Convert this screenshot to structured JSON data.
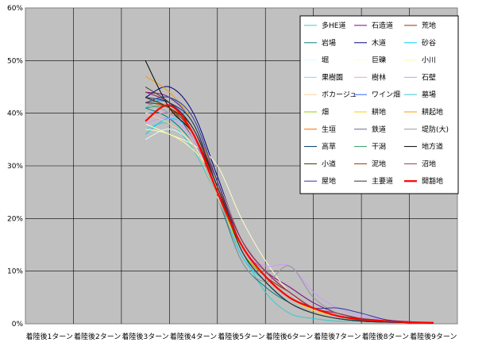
{
  "chart_data": {
    "type": "line",
    "title": "",
    "xlabel": "",
    "ylabel": "",
    "ylim": [
      0,
      60
    ],
    "y_ticks": [
      "0%",
      "10%",
      "20%",
      "30%",
      "40%",
      "50%",
      "60%"
    ],
    "categories": [
      "着陸後1ターン",
      "着陸後2ターン",
      "着陸後3ターン",
      "着陸後4ターン",
      "着陸後5ターン",
      "着陸後6ターン",
      "着陸後7ターン",
      "着陸後8ターン",
      "着陸後9ターン"
    ],
    "x": [
      3.0,
      3.5,
      4.0,
      4.5,
      5.0,
      5.5,
      6.0,
      6.5,
      7.0,
      7.5,
      8.0,
      8.5,
      9.0
    ],
    "plot_bg": "#c0c0c0",
    "grid": true,
    "legend_position": "top-right",
    "series": [
      {
        "name": "多HE道",
        "color": "#33cccc",
        "values": [
          37,
          38,
          33,
          24,
          14,
          6,
          2,
          1,
          0.5,
          0.5,
          0.3,
          0.2,
          0.1
        ]
      },
      {
        "name": "石造道",
        "color": "#800080",
        "values": [
          44,
          43,
          38,
          27,
          15,
          10,
          7,
          4,
          2,
          1,
          0.5,
          0.3,
          0.2
        ]
      },
      {
        "name": "荒地",
        "color": "#993300",
        "values": [
          42,
          41,
          35,
          25,
          14,
          9,
          6,
          3,
          1.5,
          1,
          0.6,
          0.3,
          0.2
        ]
      },
      {
        "name": "岩場",
        "color": "#008080",
        "values": [
          41,
          39,
          34,
          24,
          12,
          7,
          4,
          2,
          1,
          0.6,
          0.4,
          0.2,
          0.1
        ]
      },
      {
        "name": "木道",
        "color": "#000080",
        "values": [
          43,
          45,
          40,
          28,
          16,
          10,
          6,
          3,
          2,
          1,
          0.5,
          0.3,
          0.2
        ]
      },
      {
        "name": "砂谷",
        "color": "#00ccff",
        "values": [
          36,
          39,
          36,
          25,
          13,
          8,
          4,
          2,
          1,
          0.5,
          0.4,
          0.2,
          0.1
        ]
      },
      {
        "name": "堀",
        "color": "#ccffff",
        "values": [
          35,
          37,
          34,
          26,
          15,
          9,
          5,
          2.5,
          1.5,
          1,
          0.5,
          0.3,
          0.1
        ]
      },
      {
        "name": "巨礫",
        "color": "#ffffcc",
        "values": [
          38,
          36,
          34,
          30,
          20,
          12,
          6,
          3,
          1.5,
          0.8,
          0.5,
          0.3,
          0.1
        ]
      },
      {
        "name": "小川",
        "color": "#ffff99",
        "values": [
          37,
          36,
          33,
          27,
          16,
          10,
          6,
          3,
          1.5,
          1,
          0.5,
          0.3,
          0.1
        ]
      },
      {
        "name": "果樹園",
        "color": "#99ccff",
        "values": [
          40,
          40,
          35,
          26,
          14,
          8,
          4,
          2,
          1,
          0.5,
          0.3,
          0.2,
          0.1
        ]
      },
      {
        "name": "樹林",
        "color": "#ff99cc",
        "values": [
          39,
          40,
          36,
          26,
          15,
          10,
          6,
          3,
          2,
          1,
          0.5,
          0.3,
          0.2
        ]
      },
      {
        "name": "石壁",
        "color": "#cc99ff",
        "values": [
          38,
          39,
          35,
          25,
          14,
          11,
          11,
          6,
          3,
          1.5,
          0.8,
          0.4,
          0.2
        ]
      },
      {
        "name": "ボカージュ",
        "color": "#ffcc99",
        "values": [
          40,
          38,
          34,
          24,
          14,
          9,
          5,
          3,
          2,
          1,
          0.5,
          0.3,
          0.2
        ]
      },
      {
        "name": "ワイン畑",
        "color": "#3366ff",
        "values": [
          42,
          42,
          37,
          26,
          15,
          9,
          5,
          3,
          1.5,
          0.8,
          0.5,
          0.3,
          0.1
        ]
      },
      {
        "name": "墓場",
        "color": "#33cccc",
        "values": [
          41,
          43,
          38,
          27,
          16,
          10,
          6,
          3,
          2,
          1,
          0.5,
          0.3,
          0.2
        ]
      },
      {
        "name": "畑",
        "color": "#99cc00",
        "values": [
          42,
          41,
          36,
          25,
          14,
          9,
          5,
          3,
          1.5,
          0.8,
          0.5,
          0.3,
          0.1
        ]
      },
      {
        "name": "耕地",
        "color": "#ffcc00",
        "values": [
          45,
          42,
          37,
          26,
          15,
          9,
          5,
          2.5,
          1.5,
          0.8,
          0.5,
          0.3,
          0.1
        ]
      },
      {
        "name": "耕起地",
        "color": "#ff9900",
        "values": [
          47,
          44,
          38,
          27,
          16,
          10,
          6,
          3,
          2,
          1,
          0.5,
          0.3,
          0.2
        ]
      },
      {
        "name": "生垣",
        "color": "#ff6600",
        "values": [
          43,
          41,
          37,
          26,
          15,
          9,
          5,
          3,
          1.5,
          1,
          0.5,
          0.3,
          0.2
        ]
      },
      {
        "name": "鉄道",
        "color": "#666699",
        "values": [
          44,
          42,
          37,
          27,
          16,
          10,
          6,
          3,
          1.5,
          0.8,
          0.5,
          0.3,
          0.1
        ]
      },
      {
        "name": "堤防(大)",
        "color": "#969696",
        "values": [
          42,
          40,
          36,
          25,
          12,
          8,
          11,
          5,
          2,
          1,
          0.5,
          0.3,
          0.2
        ]
      },
      {
        "name": "高草",
        "color": "#003366",
        "values": [
          43,
          42,
          38,
          26,
          15,
          9,
          5,
          3,
          1.5,
          1,
          0.5,
          0.3,
          0.2
        ]
      },
      {
        "name": "干潟",
        "color": "#339966",
        "values": [
          41,
          41,
          36,
          26,
          15,
          9,
          5,
          3,
          1.5,
          0.8,
          0.5,
          0.3,
          0.1
        ]
      },
      {
        "name": "地方道",
        "color": "#000000",
        "values": [
          50,
          41,
          36,
          26,
          14,
          8,
          4,
          2,
          1,
          0.5,
          0.3,
          0.2,
          0.1
        ]
      },
      {
        "name": "小道",
        "color": "#333300",
        "values": [
          43,
          41,
          37,
          26,
          15,
          9,
          5,
          3,
          1.5,
          1,
          0.5,
          0.3,
          0.2
        ]
      },
      {
        "name": "泥地",
        "color": "#993300",
        "values": [
          42,
          41,
          36,
          26,
          16,
          10,
          6,
          3,
          2,
          1,
          0.5,
          0.3,
          0.2
        ]
      },
      {
        "name": "沼地",
        "color": "#993366",
        "values": [
          44,
          42,
          37,
          27,
          16,
          10,
          6,
          3,
          2,
          1,
          0.5,
          0.3,
          0.2
        ]
      },
      {
        "name": "屋地",
        "color": "#333399",
        "values": [
          42,
          43,
          39,
          27,
          15,
          9,
          5,
          3,
          3,
          2,
          0.8,
          0.4,
          0.2
        ]
      },
      {
        "name": "主要道",
        "color": "#333333",
        "values": [
          45,
          42,
          37,
          26,
          14,
          8,
          4,
          2,
          1,
          0.5,
          0.3,
          0.2,
          0.1
        ]
      },
      {
        "name": "開豁地",
        "color": "#ff0000",
        "values": [
          38.5,
          41.5,
          36,
          25,
          15,
          9,
          5,
          3,
          1.5,
          0.8,
          0.5,
          0.3,
          0.2
        ]
      }
    ]
  }
}
